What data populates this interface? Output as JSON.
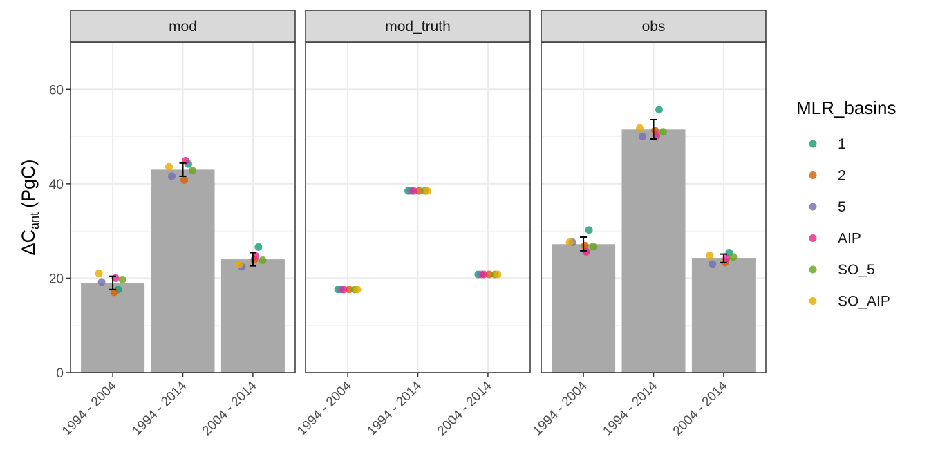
{
  "chart_data": {
    "type": "bar",
    "panels": [
      "mod",
      "mod_truth",
      "obs"
    ],
    "categories": [
      "1994 - 2004",
      "1994 - 2014",
      "2004 - 2014"
    ],
    "ylabel": {
      "main": "ΔC",
      "sub": "ant",
      "unit": "(PgC)"
    },
    "xlabel": "",
    "ylim": [
      0,
      70
    ],
    "yticks": [
      0,
      20,
      40,
      60
    ],
    "grid": true,
    "legend": {
      "title": "MLR_basins",
      "position": "right",
      "entries": [
        {
          "label": "1",
          "color": "#1B9E77"
        },
        {
          "label": "2",
          "color": "#D95F02"
        },
        {
          "label": "5",
          "color": "#7570B3"
        },
        {
          "label": "AIP",
          "color": "#E7298A"
        },
        {
          "label": "SO_5",
          "color": "#66A61E"
        },
        {
          "label": "SO_AIP",
          "color": "#E6AB02"
        }
      ]
    },
    "bar_color": "#A9A9A9",
    "bars": {
      "mod": [
        19.0,
        43.0,
        24.0
      ],
      "mod_truth": [
        null,
        null,
        null
      ],
      "obs": [
        27.2,
        51.5,
        24.3
      ]
    },
    "error_bars": {
      "mod": [
        [
          17.6,
          20.4
        ],
        [
          41.6,
          44.4
        ],
        [
          22.6,
          25.4
        ]
      ],
      "obs": [
        [
          25.8,
          28.7
        ],
        [
          49.5,
          53.6
        ],
        [
          23.3,
          25.1
        ]
      ]
    },
    "points": {
      "mod": [
        {
          "group": "1",
          "category": "1994 - 2004",
          "y": 17.6
        },
        {
          "group": "2",
          "category": "1994 - 2004",
          "y": 17.0
        },
        {
          "group": "5",
          "category": "1994 - 2004",
          "y": 19.2
        },
        {
          "group": "AIP",
          "category": "1994 - 2004",
          "y": 20.0
        },
        {
          "group": "SO_5",
          "category": "1994 - 2004",
          "y": 19.7
        },
        {
          "group": "SO_AIP",
          "category": "1994 - 2004",
          "y": 21.0
        },
        {
          "group": "1",
          "category": "1994 - 2014",
          "y": 44.2
        },
        {
          "group": "2",
          "category": "1994 - 2014",
          "y": 40.8
        },
        {
          "group": "5",
          "category": "1994 - 2014",
          "y": 41.6
        },
        {
          "group": "AIP",
          "category": "1994 - 2014",
          "y": 44.9
        },
        {
          "group": "SO_5",
          "category": "1994 - 2014",
          "y": 42.8
        },
        {
          "group": "SO_AIP",
          "category": "1994 - 2014",
          "y": 43.6
        },
        {
          "group": "1",
          "category": "2004 - 2014",
          "y": 26.6
        },
        {
          "group": "2",
          "category": "2004 - 2014",
          "y": 23.9
        },
        {
          "group": "5",
          "category": "2004 - 2014",
          "y": 22.4
        },
        {
          "group": "AIP",
          "category": "2004 - 2014",
          "y": 24.7
        },
        {
          "group": "SO_5",
          "category": "2004 - 2014",
          "y": 23.8
        },
        {
          "group": "SO_AIP",
          "category": "2004 - 2014",
          "y": 22.9
        }
      ],
      "mod_truth": [
        {
          "group": "1",
          "category": "1994 - 2004",
          "y": 17.6
        },
        {
          "group": "2",
          "category": "1994 - 2004",
          "y": 17.6
        },
        {
          "group": "5",
          "category": "1994 - 2004",
          "y": 17.6
        },
        {
          "group": "AIP",
          "category": "1994 - 2004",
          "y": 17.6
        },
        {
          "group": "SO_5",
          "category": "1994 - 2004",
          "y": 17.6
        },
        {
          "group": "SO_AIP",
          "category": "1994 - 2004",
          "y": 17.6
        },
        {
          "group": "1",
          "category": "1994 - 2014",
          "y": 38.5
        },
        {
          "group": "2",
          "category": "1994 - 2014",
          "y": 38.5
        },
        {
          "group": "5",
          "category": "1994 - 2014",
          "y": 38.5
        },
        {
          "group": "AIP",
          "category": "1994 - 2014",
          "y": 38.5
        },
        {
          "group": "SO_5",
          "category": "1994 - 2014",
          "y": 38.5
        },
        {
          "group": "SO_AIP",
          "category": "1994 - 2014",
          "y": 38.5
        },
        {
          "group": "1",
          "category": "2004 - 2014",
          "y": 20.8
        },
        {
          "group": "2",
          "category": "2004 - 2014",
          "y": 20.8
        },
        {
          "group": "5",
          "category": "2004 - 2014",
          "y": 20.8
        },
        {
          "group": "AIP",
          "category": "2004 - 2014",
          "y": 20.8
        },
        {
          "group": "SO_5",
          "category": "2004 - 2014",
          "y": 20.8
        },
        {
          "group": "SO_AIP",
          "category": "2004 - 2014",
          "y": 20.8
        }
      ],
      "obs": [
        {
          "group": "1",
          "category": "1994 - 2004",
          "y": 30.2
        },
        {
          "group": "2",
          "category": "1994 - 2004",
          "y": 26.9
        },
        {
          "group": "5",
          "category": "1994 - 2004",
          "y": 27.6
        },
        {
          "group": "AIP",
          "category": "1994 - 2004",
          "y": 25.6
        },
        {
          "group": "SO_5",
          "category": "1994 - 2004",
          "y": 26.7
        },
        {
          "group": "SO_AIP",
          "category": "1994 - 2004",
          "y": 27.6
        },
        {
          "group": "1",
          "category": "1994 - 2014",
          "y": 55.7
        },
        {
          "group": "2",
          "category": "1994 - 2014",
          "y": 51.3
        },
        {
          "group": "5",
          "category": "1994 - 2014",
          "y": 50.0
        },
        {
          "group": "AIP",
          "category": "1994 - 2014",
          "y": 50.2
        },
        {
          "group": "SO_5",
          "category": "1994 - 2014",
          "y": 51.0
        },
        {
          "group": "SO_AIP",
          "category": "1994 - 2014",
          "y": 51.8
        },
        {
          "group": "1",
          "category": "2004 - 2014",
          "y": 25.4
        },
        {
          "group": "2",
          "category": "2004 - 2014",
          "y": 23.3
        },
        {
          "group": "5",
          "category": "2004 - 2014",
          "y": 23.0
        },
        {
          "group": "AIP",
          "category": "2004 - 2014",
          "y": 24.2
        },
        {
          "group": "SO_5",
          "category": "2004 - 2014",
          "y": 24.5
        },
        {
          "group": "SO_AIP",
          "category": "2004 - 2014",
          "y": 24.8
        }
      ]
    }
  }
}
